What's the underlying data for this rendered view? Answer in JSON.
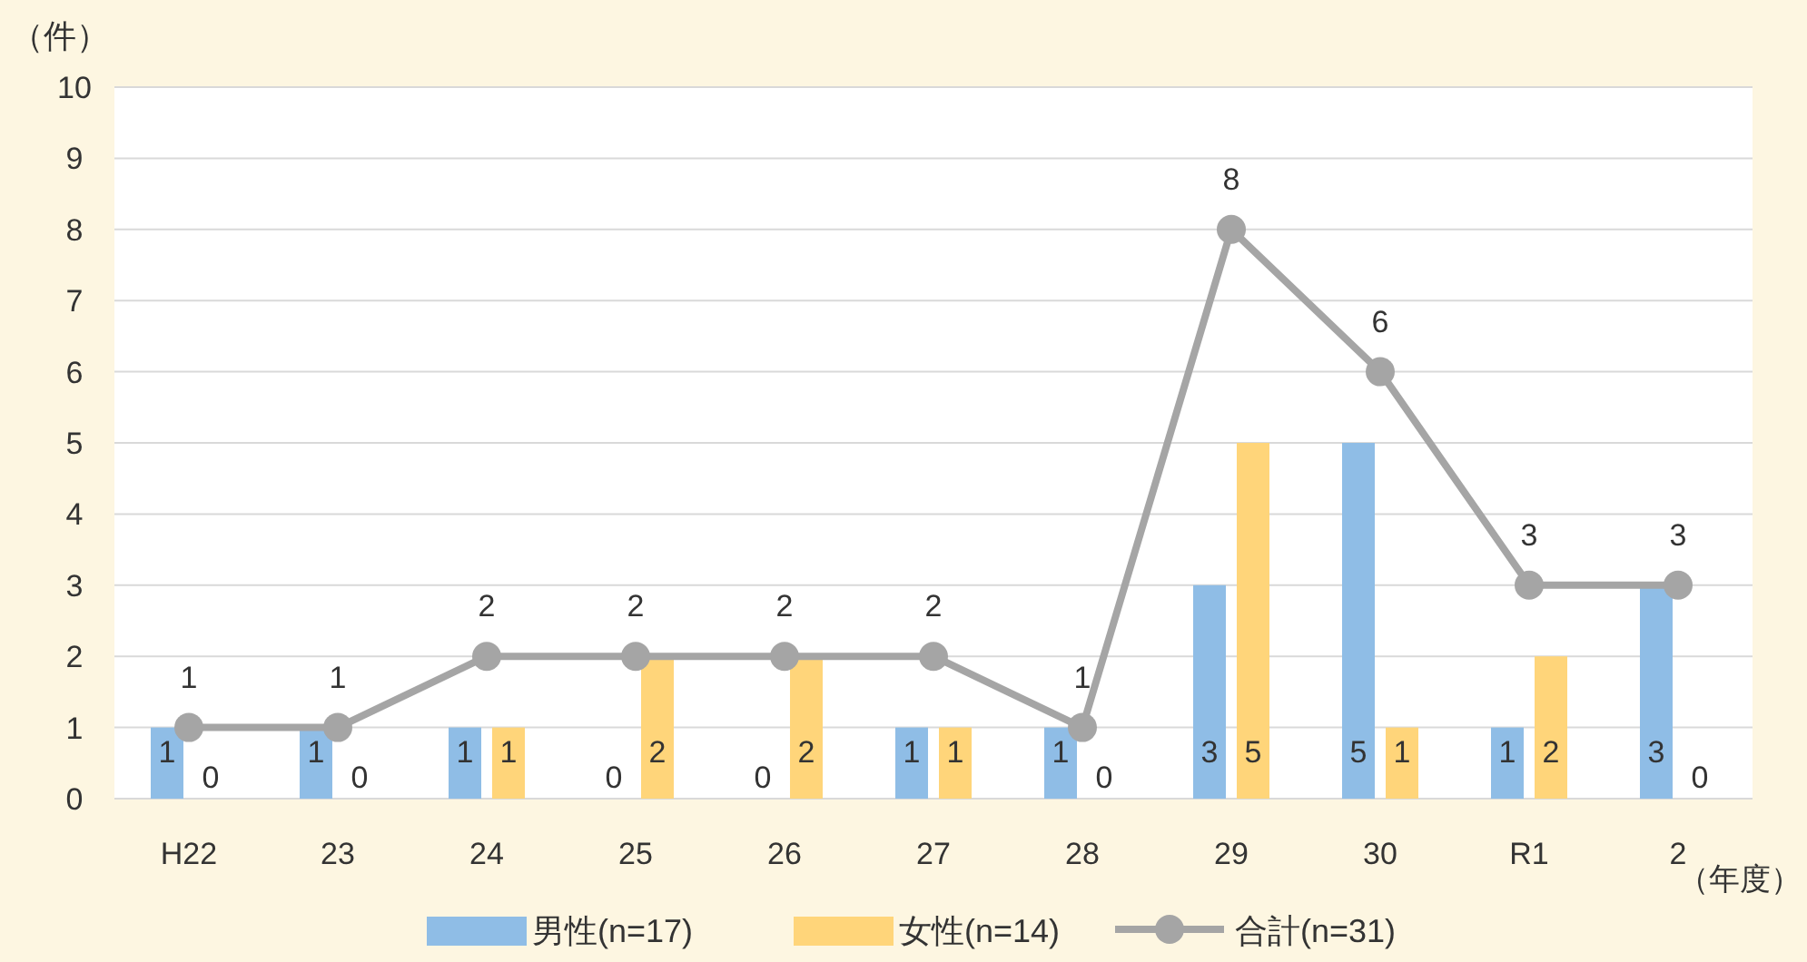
{
  "chart_data": {
    "type": "bar",
    "ylabel": "（件）",
    "xlabel": "（年度）",
    "categories": [
      "H22",
      "23",
      "24",
      "25",
      "26",
      "27",
      "28",
      "29",
      "30",
      "R1",
      "2"
    ],
    "series": [
      {
        "name": "男性(n=17)",
        "color": "#8fbde6",
        "values": [
          1,
          1,
          1,
          0,
          0,
          1,
          1,
          3,
          5,
          1,
          3
        ]
      },
      {
        "name": "女性(n=14)",
        "color": "#ffd57a",
        "values": [
          0,
          0,
          1,
          2,
          2,
          1,
          0,
          5,
          1,
          2,
          0
        ]
      },
      {
        "name": "合計(n=31)",
        "type": "line",
        "color": "#a5a5a5",
        "marker": "circle",
        "values": [
          1,
          1,
          2,
          2,
          2,
          2,
          1,
          8,
          6,
          3,
          3
        ]
      }
    ],
    "ylim": [
      0,
      10
    ],
    "yticks": [
      0,
      1,
      2,
      3,
      4,
      5,
      6,
      7,
      8,
      9,
      10
    ],
    "grid": "y",
    "legend": "bottom",
    "data_labels": true
  }
}
